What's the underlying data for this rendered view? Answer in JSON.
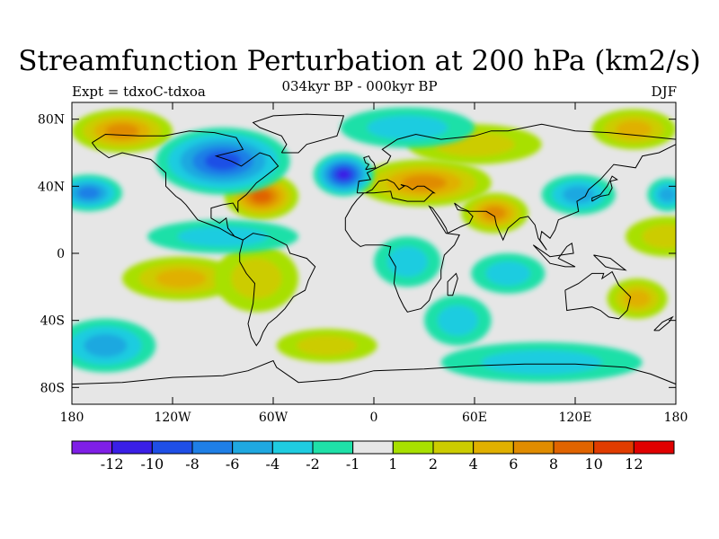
{
  "title": "Streamfunction Perturbation at 200 hPa (km2/s)",
  "subtitle": "034kyr BP - 000kyr BP",
  "left_label": "Expt = tdxoC-tdxoa",
  "right_label": "DJF",
  "map": {
    "projection": "cylindrical equidistant",
    "lon_range": [
      -180,
      180
    ],
    "lat_range": [
      -90,
      90
    ],
    "x_ticks": [
      {
        "lon": -180,
        "label": "180"
      },
      {
        "lon": -120,
        "label": "120W"
      },
      {
        "lon": -60,
        "label": "60W"
      },
      {
        "lon": 0,
        "label": "0"
      },
      {
        "lon": 60,
        "label": "60E"
      },
      {
        "lon": 120,
        "label": "120E"
      },
      {
        "lon": 180,
        "label": "180"
      }
    ],
    "y_ticks": [
      {
        "lat": 80,
        "label": "80N"
      },
      {
        "lat": 40,
        "label": "40N"
      },
      {
        "lat": 0,
        "label": "0"
      },
      {
        "lat": -40,
        "label": "40S"
      },
      {
        "lat": -80,
        "label": "80S"
      }
    ],
    "field_features": [
      {
        "lon": -67,
        "lat": 34,
        "value": 9,
        "rx": 22,
        "ry": 14
      },
      {
        "lon": -150,
        "lat": 73,
        "value": 7,
        "rx": 30,
        "ry": 13
      },
      {
        "lon": 30,
        "lat": 42,
        "value": 7,
        "rx": 40,
        "ry": 14
      },
      {
        "lon": 72,
        "lat": 24,
        "value": 6,
        "rx": 20,
        "ry": 12
      },
      {
        "lon": 155,
        "lat": 74,
        "value": 4,
        "rx": 25,
        "ry": 12
      },
      {
        "lon": 60,
        "lat": 65,
        "value": 3,
        "rx": 40,
        "ry": 12
      },
      {
        "lon": -115,
        "lat": -15,
        "value": 5,
        "rx": 35,
        "ry": 13
      },
      {
        "lon": 157,
        "lat": -27,
        "value": 5,
        "rx": 18,
        "ry": 12
      },
      {
        "lon": -28,
        "lat": -55,
        "value": 3,
        "rx": 30,
        "ry": 10
      },
      {
        "lon": 175,
        "lat": 10,
        "value": 3,
        "rx": 25,
        "ry": 12
      },
      {
        "lon": -70,
        "lat": -15,
        "value": 2,
        "rx": 25,
        "ry": 20
      },
      {
        "lon": -18,
        "lat": 47,
        "value": -10,
        "rx": 18,
        "ry": 13
      },
      {
        "lon": -90,
        "lat": 55,
        "value": -9,
        "rx": 40,
        "ry": 20
      },
      {
        "lon": -170,
        "lat": 36,
        "value": -6,
        "rx": 20,
        "ry": 11
      },
      {
        "lon": 122,
        "lat": 35,
        "value": -5,
        "rx": 22,
        "ry": 12
      },
      {
        "lon": 175,
        "lat": 35,
        "value": -5,
        "rx": 12,
        "ry": 10
      },
      {
        "lon": 20,
        "lat": 75,
        "value": -3,
        "rx": 40,
        "ry": 12
      },
      {
        "lon": 80,
        "lat": -12,
        "value": -3,
        "rx": 22,
        "ry": 12
      },
      {
        "lon": -90,
        "lat": 10,
        "value": -2,
        "rx": 45,
        "ry": 10
      },
      {
        "lon": -160,
        "lat": -55,
        "value": -4,
        "rx": 30,
        "ry": 16
      },
      {
        "lon": 20,
        "lat": -5,
        "value": -3,
        "rx": 20,
        "ry": 15
      },
      {
        "lon": 100,
        "lat": -65,
        "value": -2,
        "rx": 60,
        "ry": 12
      },
      {
        "lon": 50,
        "lat": -40,
        "value": -2,
        "rx": 20,
        "ry": 15
      }
    ]
  },
  "colorbar": {
    "colors": [
      "#7f1fe6",
      "#3a1fe6",
      "#1f4fe6",
      "#1f7fe6",
      "#1fa8e0",
      "#1fcce0",
      "#1fe0a8",
      "#e6e6e6",
      "#a8e000",
      "#cccc00",
      "#e0b000",
      "#e08c00",
      "#e06400",
      "#e03c00",
      "#e00000"
    ],
    "labels": [
      "-12",
      "-10",
      "-8",
      "-6",
      "-4",
      "-2",
      "-1",
      "1",
      "2",
      "4",
      "6",
      "8",
      "10",
      "12"
    ]
  }
}
